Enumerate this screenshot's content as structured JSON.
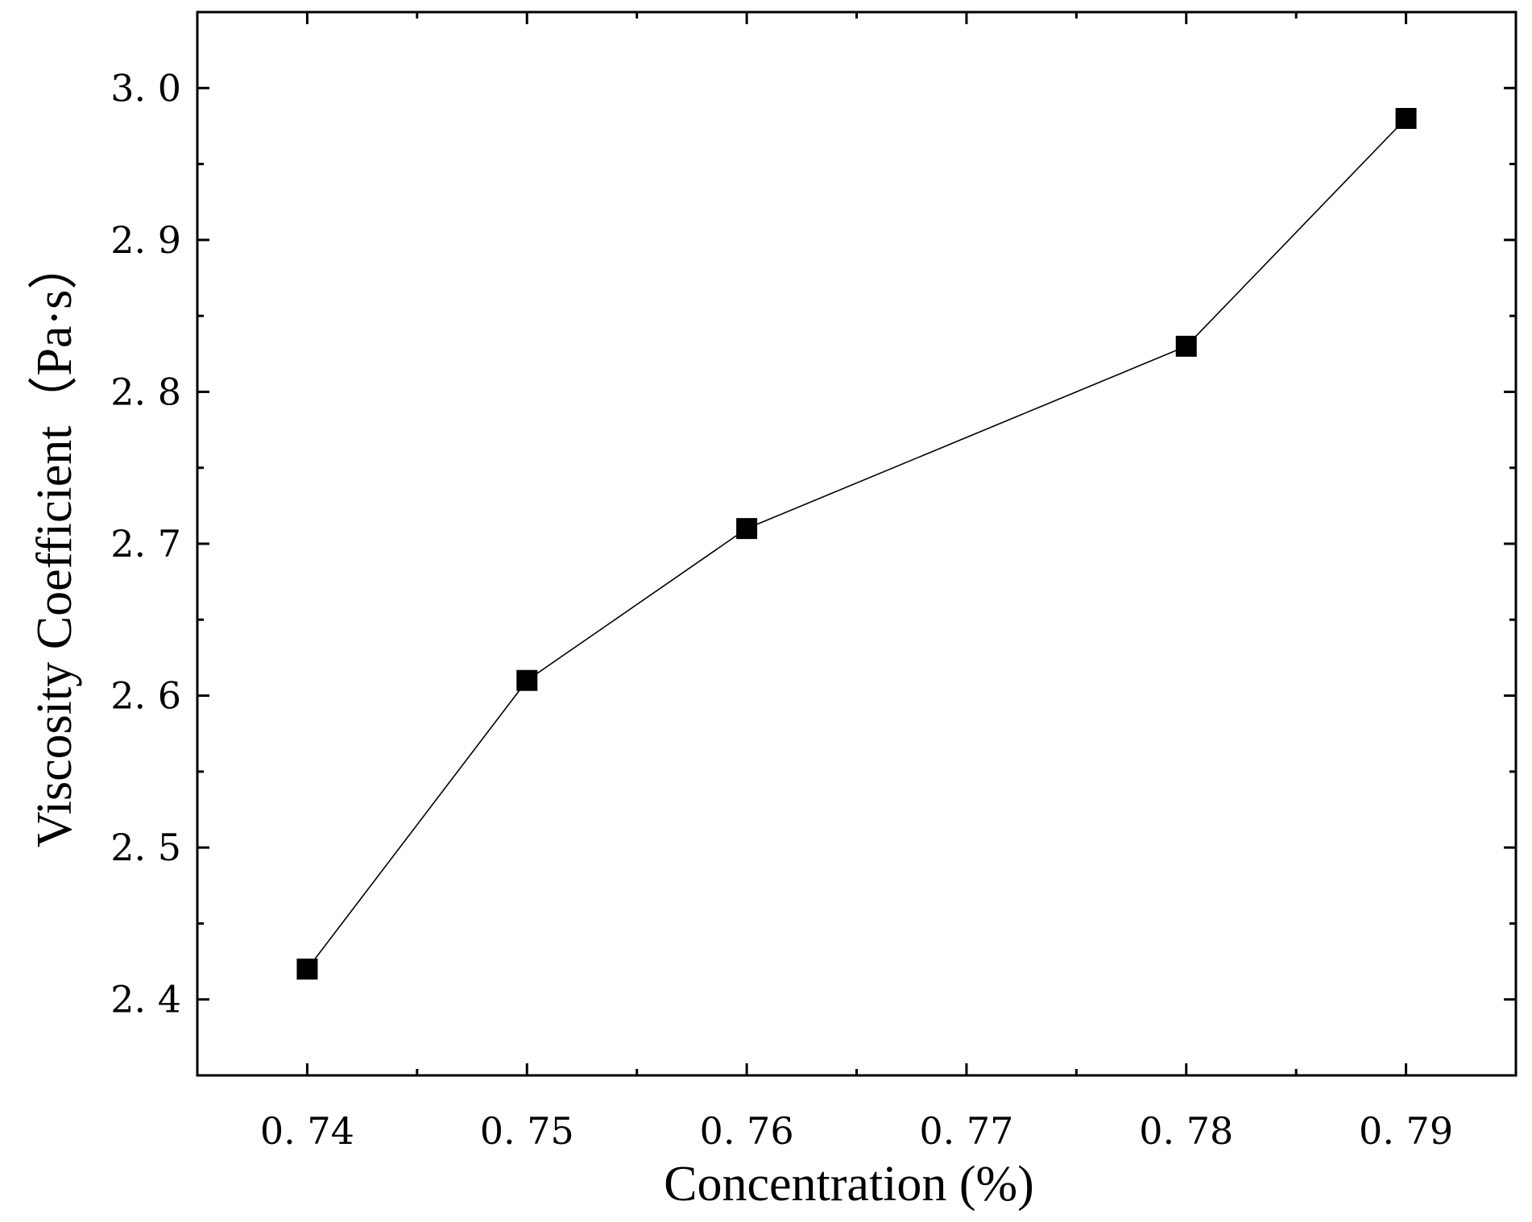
{
  "chart_data": {
    "type": "line",
    "title": "",
    "xlabel": "Concentration (%)",
    "ylabel": "Viscosity Coefficient（Pa·s）",
    "xlim": [
      0.735,
      0.795
    ],
    "ylim": [
      2.35,
      3.05
    ],
    "xticks": [
      0.74,
      0.75,
      0.76,
      0.77,
      0.78,
      0.79
    ],
    "xtick_labels": [
      "0. 74",
      "0. 75",
      "0. 76",
      "0. 77",
      "0. 78",
      "0. 79"
    ],
    "yticks": [
      2.4,
      2.5,
      2.6,
      2.7,
      2.8,
      2.9,
      3.0
    ],
    "ytick_labels": [
      "2. 4",
      "2. 5",
      "2. 6",
      "2. 7",
      "2. 8",
      "2. 9",
      "3. 0"
    ],
    "grid": false,
    "legend": "none",
    "marker": "square",
    "color": "#000000",
    "series": [
      {
        "x": [
          0.74,
          0.75,
          0.76,
          0.78,
          0.79
        ],
        "y": [
          2.42,
          2.61,
          2.71,
          2.83,
          2.98
        ]
      }
    ]
  }
}
